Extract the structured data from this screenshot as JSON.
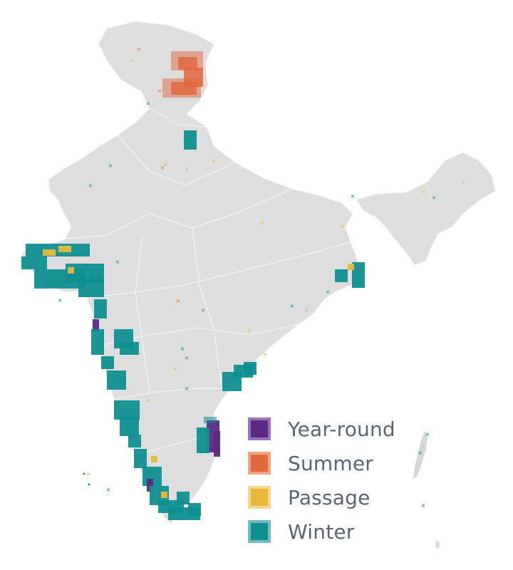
{
  "legend": {
    "items": [
      {
        "key": "year_round",
        "label": "Year-round",
        "color": "#5a2a82",
        "border": "#9a74b8"
      },
      {
        "key": "summer",
        "label": "Summer",
        "color": "#e0693e",
        "border": "#f0a484"
      },
      {
        "key": "passage",
        "label": "Passage",
        "color": "#e8b83a",
        "border": "#f4d98c"
      },
      {
        "key": "winter",
        "label": "Winter",
        "color": "#0f8f8f",
        "border": "#72bcbc"
      }
    ]
  },
  "map": {
    "land_color": "#dedede",
    "border_color": "#f2f2f2",
    "background": "#ffffff"
  }
}
